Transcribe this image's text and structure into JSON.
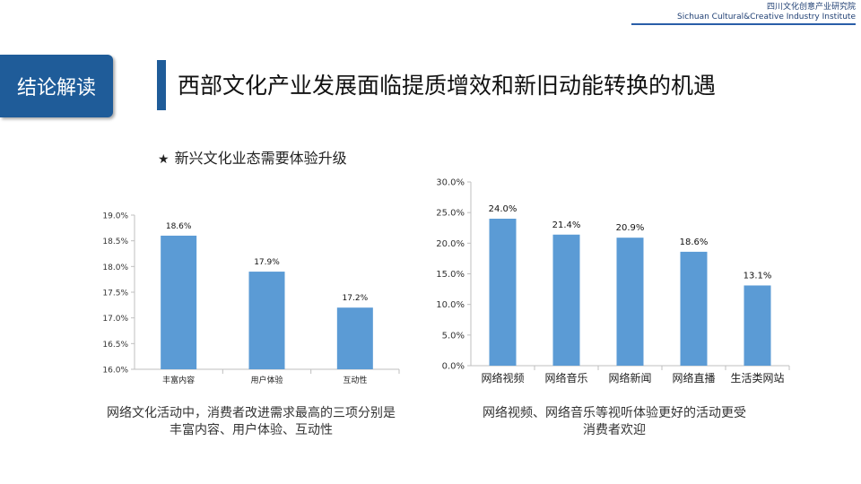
{
  "header": {
    "org_cn": "四川文化创意产业研究院",
    "org_en": "Sichuan Cultural&Creative Industry Institute",
    "badge": "结论解读",
    "title": "西部文化产业发展面临提质增效和新旧动能转换的机遇",
    "subtitle": "新兴文化业态需要体验升级",
    "star": "★"
  },
  "captions": {
    "left_line1": "网络文化活动中，消费者改进需求最高的三项分别是",
    "left_line2": "丰富内容、用户体验、互动性",
    "right_line1": "网络视频、网络音乐等视听体验更好的活动更受",
    "right_line2": "消费者欢迎"
  },
  "colors": {
    "bar": "#5b9bd5",
    "brand": "#1f5c99"
  },
  "chart_data": [
    {
      "type": "bar",
      "categories": [
        "丰富内容",
        "用户体验",
        "互动性"
      ],
      "values": [
        18.6,
        17.9,
        17.2
      ],
      "data_labels": [
        "18.6%",
        "17.9%",
        "17.2%"
      ],
      "ylim": [
        16.0,
        19.0
      ],
      "yticks": [
        "16.0%",
        "16.5%",
        "17.0%",
        "17.5%",
        "18.0%",
        "18.5%",
        "19.0%"
      ],
      "grid": false
    },
    {
      "type": "bar",
      "categories": [
        "网络视频",
        "网络音乐",
        "网络新闻",
        "网络直播",
        "生活类网站"
      ],
      "values": [
        24.0,
        21.4,
        20.9,
        18.6,
        13.1
      ],
      "data_labels": [
        "24.0%",
        "21.4%",
        "20.9%",
        "18.6%",
        "13.1%"
      ],
      "ylim": [
        0,
        30
      ],
      "yticks": [
        "0.0%",
        "5.0%",
        "10.0%",
        "15.0%",
        "20.0%",
        "25.0%",
        "30.0%"
      ],
      "grid": false
    }
  ]
}
